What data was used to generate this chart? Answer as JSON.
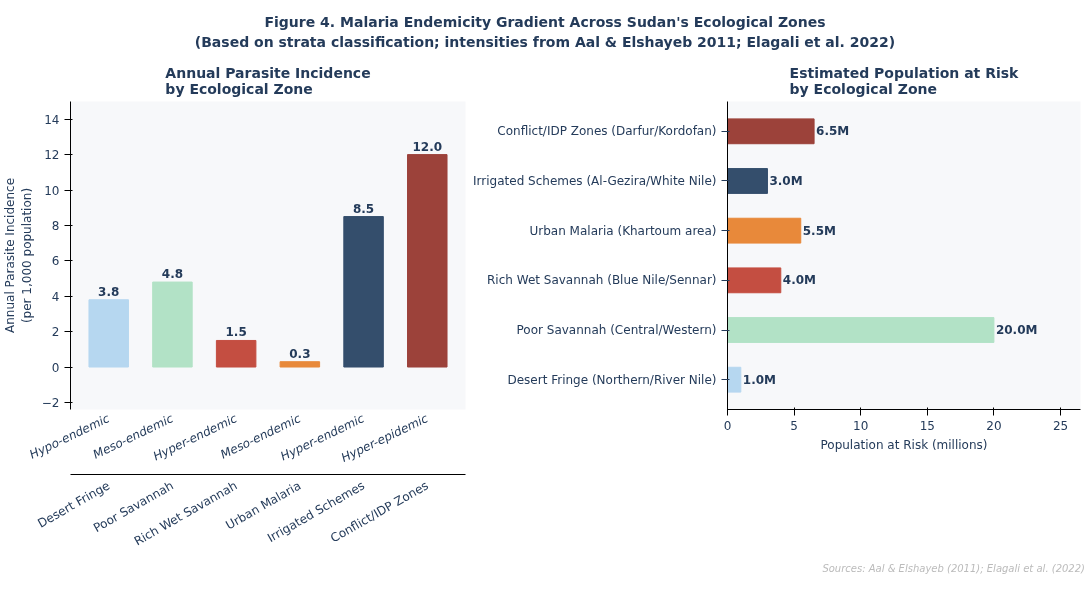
{
  "chart_data": [
    {
      "type": "bar",
      "title": "Annual Parasite Incidence\nby Ecological Zone",
      "ylabel": "Annual Parasite Incidence\n(per 1,000 population)",
      "categories": [
        "Desert Fringe",
        "Poor Savannah",
        "Rich Wet Savannah",
        "Urban Malaria",
        "Irrigated Schemes",
        "Conflict/IDP Zones"
      ],
      "values": [
        3.8,
        4.8,
        1.5,
        0.3,
        8.5,
        12.0
      ],
      "colors": [
        "#b6d7f0",
        "#b2e2c6",
        "#c44e41",
        "#e8893a",
        "#344e6c",
        "#9c423a"
      ],
      "ylim": [
        -2.4,
        15
      ],
      "yticks": [
        -2,
        0,
        2,
        4,
        6,
        8,
        10,
        12,
        14
      ],
      "grid": false,
      "value_labels": [
        "3.8",
        "4.8",
        "1.5",
        "0.3",
        "8.5",
        "12.0"
      ],
      "annotations": [
        "Figure 4. Malaria Endemicity Gradient Across Sudan's Ecological Zones\n(Based on strata classification; intensities from Aal & Elshayeb 2011; Elagali et al. 2022)",
        "Hypo-endemic",
        "Meso-endemic",
        "Hyper-endemic",
        "Meso-endemic",
        "Hyper-endemic",
        "Hyper-epidemic"
      ]
    },
    {
      "type": "bar",
      "orientation": "horizontal",
      "title": "Estimated Population at Risk\nby Ecological Zone",
      "xlabel": "Population at Risk (millions)",
      "categories": [
        "Conflict/IDP Zones (Darfur/Kordofan)",
        "Irrigated Schemes (Al-Gezira/White Nile)",
        "Urban Malaria (Khartoum area)",
        "Rich Wet Savannah (Blue Nile/Sennar)",
        "Poor Savannah (Central/Western)",
        "Desert Fringe (Northern/River Nile)"
      ],
      "values": [
        6.5,
        3.0,
        5.5,
        4.0,
        20.0,
        1.0
      ],
      "colors": [
        "#9c423a",
        "#344e6c",
        "#e8893a",
        "#c44e41",
        "#b2e2c6",
        "#b6d7f0"
      ],
      "value_labels": [
        "6.5M",
        "3.0M",
        "5.5M",
        "4.0M",
        "20.0M",
        "1.0M"
      ],
      "xlim": [
        0,
        26.5
      ],
      "xticks": [
        0,
        5,
        10,
        15,
        20,
        25
      ],
      "grid": false,
      "annotations": [
        "Sources: Aal & Elshayeb (2011); Elagali et al. (2022)"
      ]
    }
  ]
}
